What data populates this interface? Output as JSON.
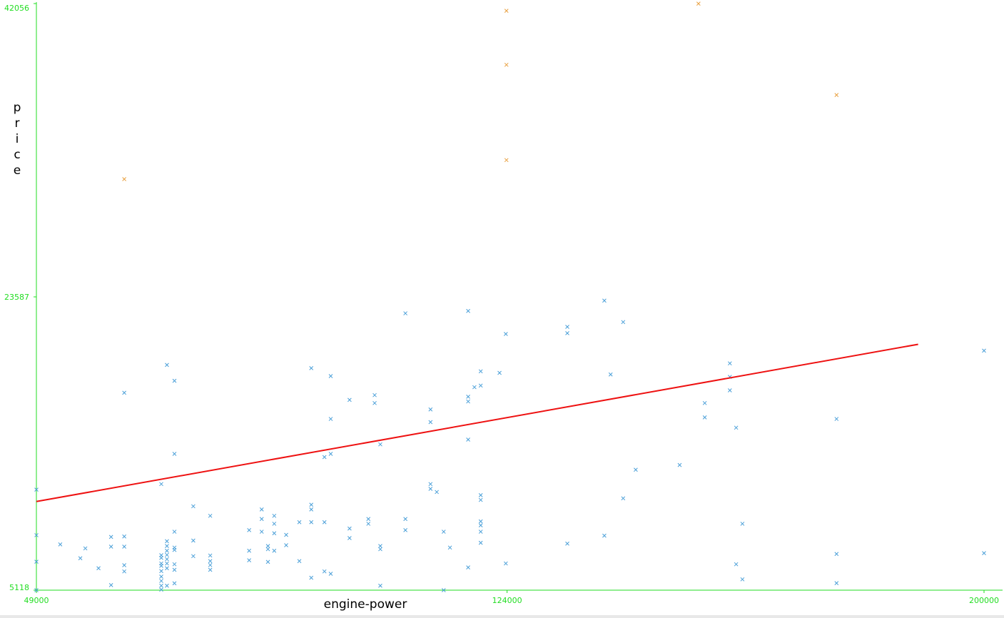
{
  "chart_data": {
    "type": "scatter",
    "title": "",
    "xlabel": "engine-power",
    "ylabel": "price",
    "xlim": [
      49000,
      200000
    ],
    "ylim": [
      5118,
      42056
    ],
    "x_ticks": [
      {
        "value": 49000,
        "label": "49000"
      },
      {
        "value": 124000,
        "label": "124000"
      },
      {
        "value": 200000,
        "label": "200000"
      }
    ],
    "y_ticks": [
      {
        "value": 5118,
        "label": "5118"
      },
      {
        "value": 23587,
        "label": "23587"
      },
      {
        "value": 42056,
        "label": "42056"
      }
    ],
    "grid": false,
    "colors": {
      "axis": "#22dd22",
      "series_low": "#4a9fd8",
      "series_high": "#e8a040",
      "trend": "#ee1111"
    },
    "series": [
      {
        "marker": "x",
        "color": "#4a9fd8",
        "points": [
          [
            49000,
            11450
          ],
          [
            49000,
            8580
          ],
          [
            49000,
            6910
          ],
          [
            49000,
            5118
          ],
          [
            52800,
            8000
          ],
          [
            56000,
            7130
          ],
          [
            56800,
            7750
          ],
          [
            58900,
            6500
          ],
          [
            60900,
            5440
          ],
          [
            60900,
            7860
          ],
          [
            60900,
            8470
          ],
          [
            63000,
            17550
          ],
          [
            63000,
            8500
          ],
          [
            63000,
            7860
          ],
          [
            63000,
            6690
          ],
          [
            63000,
            6300
          ],
          [
            68900,
            5150
          ],
          [
            68900,
            5400
          ],
          [
            68900,
            5700
          ],
          [
            68900,
            5970
          ],
          [
            68900,
            6320
          ],
          [
            68900,
            6650
          ],
          [
            68900,
            6800
          ],
          [
            68900,
            7150
          ],
          [
            68900,
            7320
          ],
          [
            68900,
            11800
          ],
          [
            69800,
            5400
          ],
          [
            69800,
            6500
          ],
          [
            69800,
            6800
          ],
          [
            69800,
            7070
          ],
          [
            69800,
            7340
          ],
          [
            69800,
            7600
          ],
          [
            69800,
            7900
          ],
          [
            69800,
            8200
          ],
          [
            69800,
            19300
          ],
          [
            71000,
            5550
          ],
          [
            71000,
            6400
          ],
          [
            71000,
            6750
          ],
          [
            71000,
            7650
          ],
          [
            71000,
            7800
          ],
          [
            71000,
            8800
          ],
          [
            71000,
            13700
          ],
          [
            71000,
            18300
          ],
          [
            74000,
            7260
          ],
          [
            74000,
            8240
          ],
          [
            74000,
            10400
          ],
          [
            76700,
            6400
          ],
          [
            76700,
            6700
          ],
          [
            76700,
            6950
          ],
          [
            76700,
            7300
          ],
          [
            76700,
            9800
          ],
          [
            82900,
            7000
          ],
          [
            82900,
            7600
          ],
          [
            82900,
            8900
          ],
          [
            84900,
            8800
          ],
          [
            84900,
            9600
          ],
          [
            84900,
            10200
          ],
          [
            85900,
            6900
          ],
          [
            85900,
            7700
          ],
          [
            85900,
            7900
          ],
          [
            86900,
            7600
          ],
          [
            86900,
            8700
          ],
          [
            86900,
            9300
          ],
          [
            86900,
            9800
          ],
          [
            88800,
            7950
          ],
          [
            88800,
            8600
          ],
          [
            90900,
            6950
          ],
          [
            90900,
            9400
          ],
          [
            92800,
            5900
          ],
          [
            92800,
            9400
          ],
          [
            92800,
            10200
          ],
          [
            92800,
            10500
          ],
          [
            92800,
            19100
          ],
          [
            94900,
            6300
          ],
          [
            94900,
            9400
          ],
          [
            94900,
            13500
          ],
          [
            95900,
            6150
          ],
          [
            95900,
            13700
          ],
          [
            95900,
            15900
          ],
          [
            95900,
            18600
          ],
          [
            98900,
            8400
          ],
          [
            98900,
            9000
          ],
          [
            98900,
            17100
          ],
          [
            101900,
            9300
          ],
          [
            101900,
            9600
          ],
          [
            102900,
            16900
          ],
          [
            102900,
            17400
          ],
          [
            103800,
            5400
          ],
          [
            103800,
            7700
          ],
          [
            103800,
            7900
          ],
          [
            103800,
            14300
          ],
          [
            107800,
            8900
          ],
          [
            107800,
            9600
          ],
          [
            107800,
            22550
          ],
          [
            111800,
            11500
          ],
          [
            111800,
            11800
          ],
          [
            111800,
            15700
          ],
          [
            111800,
            16500
          ],
          [
            112800,
            11300
          ],
          [
            113900,
            5118
          ],
          [
            113900,
            8800
          ],
          [
            114900,
            7800
          ],
          [
            117800,
            6550
          ],
          [
            117800,
            14600
          ],
          [
            117800,
            17000
          ],
          [
            117800,
            17300
          ],
          [
            117800,
            22700
          ],
          [
            118800,
            17900
          ],
          [
            119800,
            8100
          ],
          [
            119800,
            8800
          ],
          [
            119800,
            9200
          ],
          [
            119800,
            9450
          ],
          [
            119800,
            10800
          ],
          [
            119800,
            11100
          ],
          [
            119800,
            18000
          ],
          [
            119800,
            18900
          ],
          [
            122800,
            18800
          ],
          [
            123800,
            6800
          ],
          [
            123800,
            21250
          ],
          [
            133600,
            8050
          ],
          [
            133600,
            21300
          ],
          [
            133600,
            21700
          ],
          [
            139500,
            8550
          ],
          [
            139500,
            23350
          ],
          [
            140500,
            18700
          ],
          [
            142500,
            10900
          ],
          [
            142500,
            22000
          ],
          [
            144500,
            12700
          ],
          [
            151500,
            13000
          ],
          [
            155500,
            16000
          ],
          [
            155500,
            16900
          ],
          [
            159500,
            17700
          ],
          [
            159500,
            18550
          ],
          [
            159500,
            19400
          ],
          [
            160500,
            6750
          ],
          [
            160500,
            15350
          ],
          [
            161500,
            5800
          ],
          [
            161500,
            9300
          ],
          [
            176500,
            5560
          ],
          [
            176500,
            7400
          ],
          [
            176500,
            15900
          ],
          [
            200000,
            7450
          ],
          [
            200000,
            20200
          ]
        ]
      },
      {
        "marker": "x",
        "color": "#e8a040",
        "points": [
          [
            63000,
            31000
          ],
          [
            123900,
            41600
          ],
          [
            123900,
            38200
          ],
          [
            123900,
            32200
          ],
          [
            154500,
            42050
          ],
          [
            176500,
            36300
          ]
        ]
      }
    ],
    "trend_line": {
      "color": "#ee1111",
      "points": [
        [
          49000,
          10700
        ],
        [
          189500,
          20600
        ]
      ]
    }
  }
}
